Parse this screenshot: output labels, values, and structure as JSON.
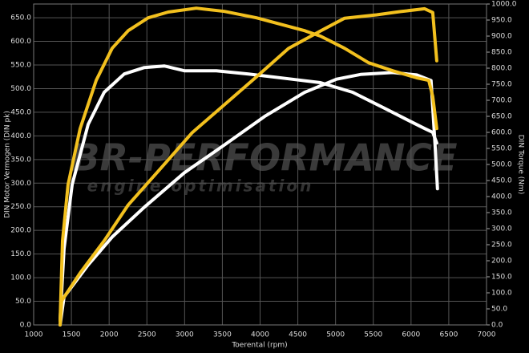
{
  "chart_data": {
    "type": "line",
    "x_label": "Toerental (rpm)",
    "y_label": "DIN Motor Vermogen (DIN pk)",
    "y2_label": "DIN Torque (Nm)",
    "watermark": {
      "brand": "BR-PERFORMANCE",
      "tagline": "engine optimisation"
    },
    "grid": true,
    "xlim": [
      1000,
      7000
    ],
    "xticks": [
      1000,
      1500,
      2000,
      2500,
      3000,
      3500,
      4000,
      4500,
      5000,
      5500,
      6000,
      6500,
      7000
    ],
    "ylim": [
      0,
      679
    ],
    "yticks": [
      {
        "value": 0,
        "label": "0.0"
      },
      {
        "value": 50,
        "label": "50.0"
      },
      {
        "value": 100,
        "label": "100.0"
      },
      {
        "value": 150,
        "label": "150.0"
      },
      {
        "value": 200,
        "label": "200.0"
      },
      {
        "value": 250,
        "label": "250.0"
      },
      {
        "value": 300,
        "label": "300.0"
      },
      {
        "value": 350,
        "label": "350.0"
      },
      {
        "value": 400,
        "label": "400.0"
      },
      {
        "value": 450,
        "label": "450.0"
      },
      {
        "value": 500,
        "label": "500.0"
      },
      {
        "value": 550,
        "label": "550.0"
      },
      {
        "value": 600,
        "label": "600.0"
      },
      {
        "value": 650,
        "label": "650.0"
      }
    ],
    "y2lim": [
      0,
      1000
    ],
    "y2ticks": [
      {
        "value": 0,
        "label": "0.0"
      },
      {
        "value": 50,
        "label": "50.0"
      },
      {
        "value": 100,
        "label": "100.0"
      },
      {
        "value": 150,
        "label": "150.0"
      },
      {
        "value": 200,
        "label": "200.0"
      },
      {
        "value": 250,
        "label": "250.0"
      },
      {
        "value": 300,
        "label": "300.0"
      },
      {
        "value": 350,
        "label": "350.0"
      },
      {
        "value": 400,
        "label": "400.0"
      },
      {
        "value": 450,
        "label": "450.0"
      },
      {
        "value": 500,
        "label": "500.0"
      },
      {
        "value": 550,
        "label": "550.0"
      },
      {
        "value": 600,
        "label": "600.0"
      },
      {
        "value": 650,
        "label": "650.0"
      },
      {
        "value": 700,
        "label": "700.0"
      },
      {
        "value": 750,
        "label": "750.0"
      },
      {
        "value": 800,
        "label": "800.0"
      },
      {
        "value": 850,
        "label": "850.0"
      },
      {
        "value": 900,
        "label": "900.0"
      },
      {
        "value": 950,
        "label": "950.0"
      },
      {
        "value": 1000,
        "label": "1000.0"
      }
    ],
    "series": [
      {
        "color": "#ffffff",
        "axis": "y2",
        "x": [
          1350,
          1403,
          1510,
          1722,
          1934,
          2200,
          2465,
          2730,
          2996,
          3421,
          3846,
          4376,
          4800,
          5225,
          5650,
          5968,
          6180,
          6287,
          6340
        ],
        "values": [
          17,
          237,
          437,
          625,
          725,
          782,
          802,
          807,
          792,
          792,
          782,
          767,
          755,
          725,
          675,
          637,
          612,
          600,
          567
        ]
      },
      {
        "color": "#ffffff",
        "x": [
          1350,
          1403,
          1722,
          2040,
          2465,
          2996,
          3527,
          4058,
          4588,
          5013,
          5331,
          5756,
          6075,
          6265,
          6318,
          6350
        ],
        "values": [
          0,
          59,
          127,
          186,
          249,
          322,
          381,
          441,
          492,
          520,
          530,
          534,
          529,
          517,
          381,
          288
        ]
      },
      {
        "color": "#f2c01e",
        "axis": "y2",
        "x": [
          1350,
          1382,
          1456,
          1616,
          1828,
          2040,
          2253,
          2518,
          2783,
          3155,
          3527,
          3952,
          4270,
          4588,
          4800,
          5119,
          5437,
          5756,
          6075,
          6234,
          6287,
          6340
        ],
        "values": [
          12,
          262,
          437,
          612,
          762,
          862,
          917,
          957,
          975,
          987,
          977,
          957,
          937,
          917,
          900,
          862,
          817,
          792,
          770,
          762,
          712,
          612
        ]
      },
      {
        "color": "#f2c01e",
        "x": [
          1350,
          1371,
          1616,
          1934,
          2253,
          2677,
          3102,
          3527,
          3952,
          4376,
          4800,
          5119,
          5543,
          5862,
          6180,
          6287,
          6340
        ],
        "values": [
          0,
          51,
          110,
          178,
          254,
          330,
          407,
          466,
          525,
          585,
          622,
          649,
          656,
          663,
          669,
          661,
          559
        ]
      }
    ]
  }
}
